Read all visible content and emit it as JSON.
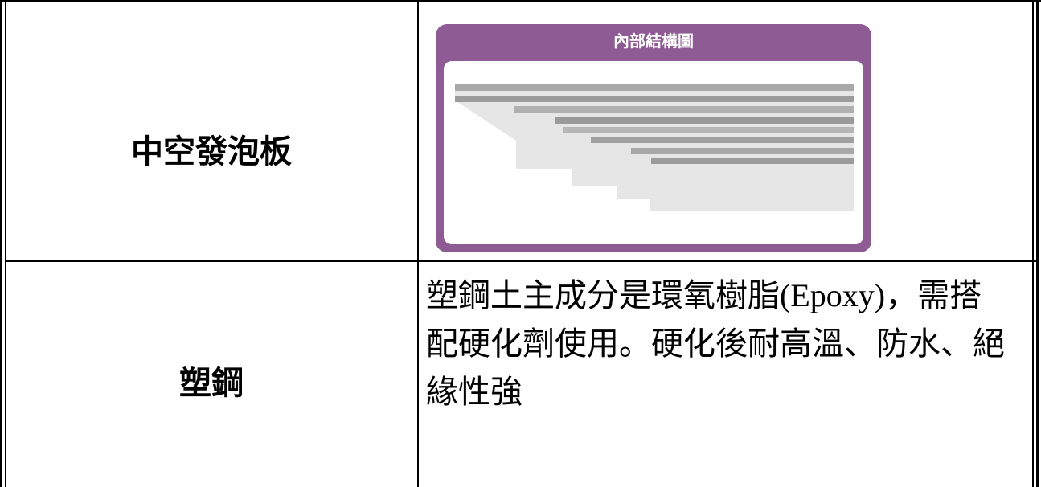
{
  "table": {
    "rows": [
      {
        "label": "中空發泡板",
        "image": {
          "title": "內部結構圖"
        }
      },
      {
        "label": "塑鋼",
        "lines": [
          "塑鋼土主成分是環氧樹脂(Epoxy)，需搭",
          "配硬化劑使用。硬化後耐高溫、防水、絕",
          "緣性強"
        ]
      }
    ]
  }
}
